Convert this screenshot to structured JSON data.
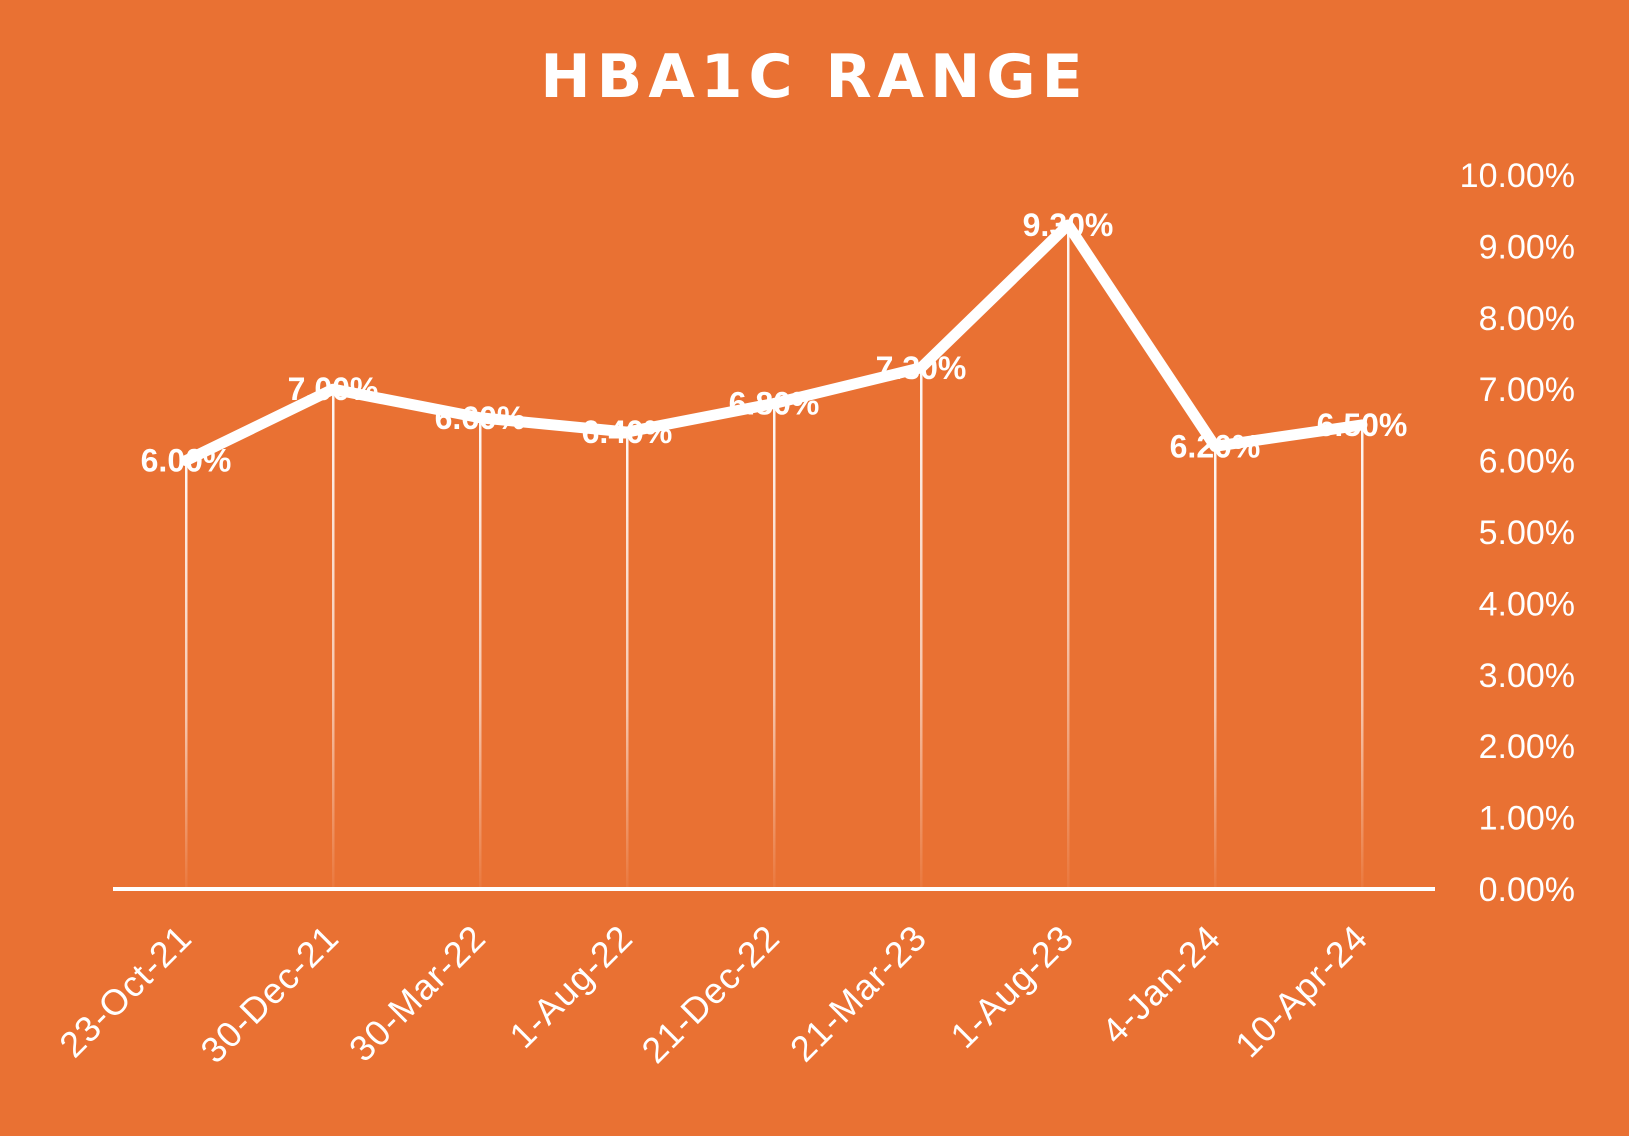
{
  "chart_data": {
    "type": "line",
    "title": "HBA1C RANGE",
    "xlabel": "",
    "ylabel": "",
    "categories": [
      "23-Oct-21",
      "30-Dec-21",
      "30-Mar-22",
      "1-Aug-22",
      "21-Dec-22",
      "21-Mar-23",
      "1-Aug-23",
      "4-Jan-24",
      "10-Apr-24"
    ],
    "series": [
      {
        "values": [
          6.0,
          7.0,
          6.6,
          6.4,
          6.8,
          7.3,
          9.3,
          6.2,
          6.5
        ],
        "data_labels": [
          "6.00%",
          "7.00%",
          "6.60%",
          "6.40%",
          "6.80%",
          "7.30%",
          "9.30%",
          "6.20%",
          "6.50%"
        ]
      }
    ],
    "ylim": [
      0,
      10
    ],
    "y_ticks": [
      "0.00%",
      "1.00%",
      "2.00%",
      "3.00%",
      "4.00%",
      "5.00%",
      "6.00%",
      "7.00%",
      "8.00%",
      "9.00%",
      "10.00%"
    ],
    "y_axis_side": "right",
    "drop_lines": true,
    "grid": false,
    "legend": "none",
    "colors": {
      "background": "#E97133",
      "line": "#FFFFFF",
      "text": "#FFFFFF"
    }
  }
}
